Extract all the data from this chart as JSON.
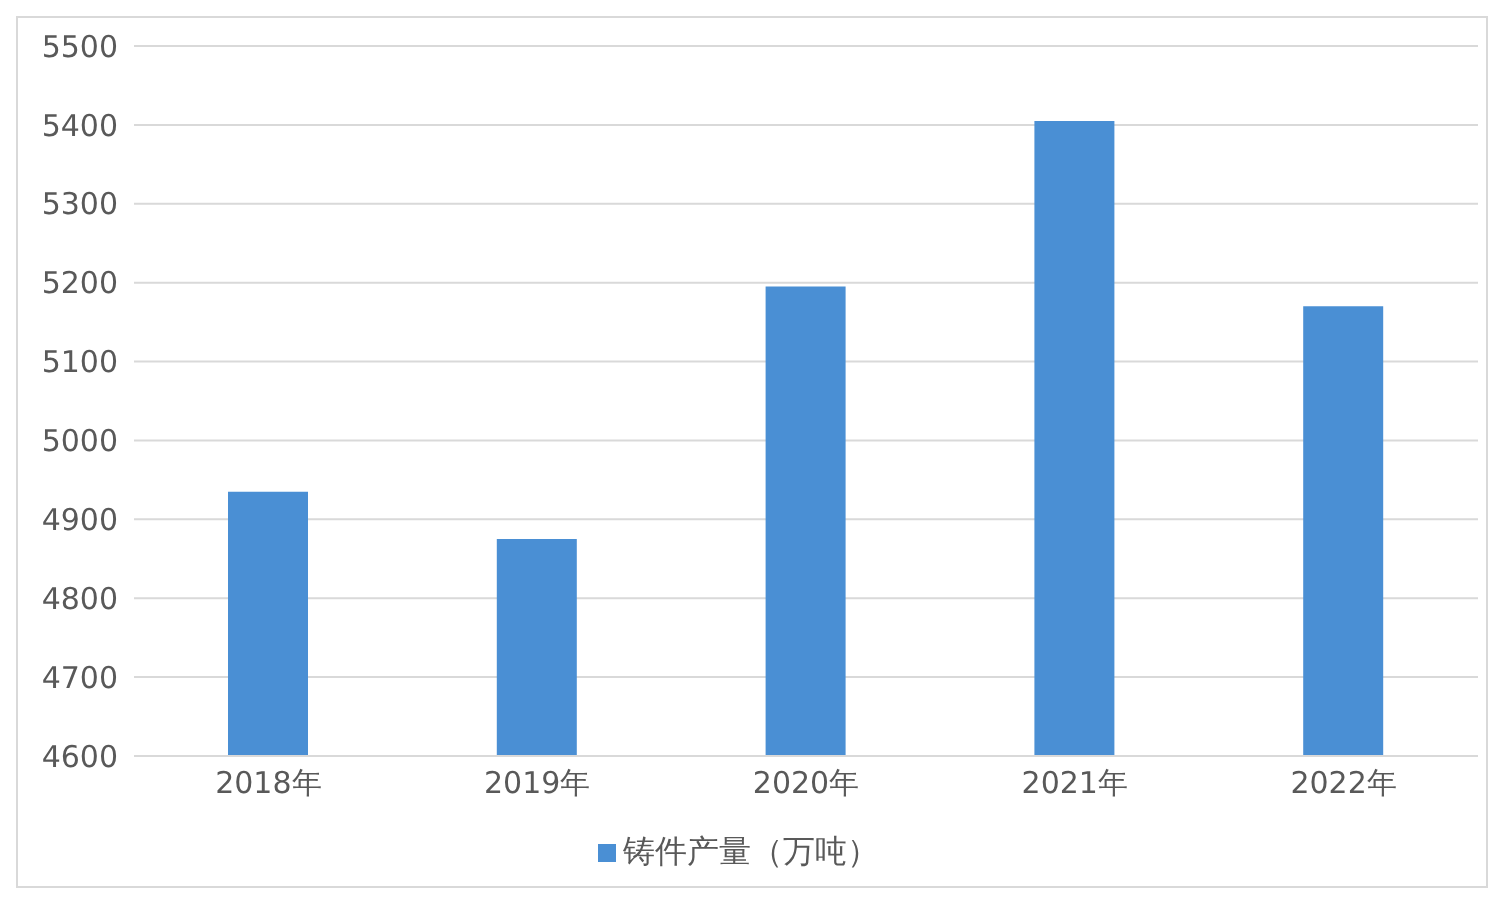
{
  "chart_data": {
    "type": "bar",
    "categories": [
      "2018年",
      "2019年",
      "2020年",
      "2021年",
      "2022年"
    ],
    "series": [
      {
        "name": "铸件产量（万吨）",
        "color": "#4a8fd4",
        "values": [
          4935,
          4875,
          5195,
          5405,
          5170
        ]
      }
    ],
    "ylim": [
      4600,
      5500
    ],
    "yticks": [
      4600,
      4700,
      4800,
      4900,
      5000,
      5100,
      5200,
      5300,
      5400,
      5500
    ],
    "grid": "y",
    "legend": "bottom"
  }
}
